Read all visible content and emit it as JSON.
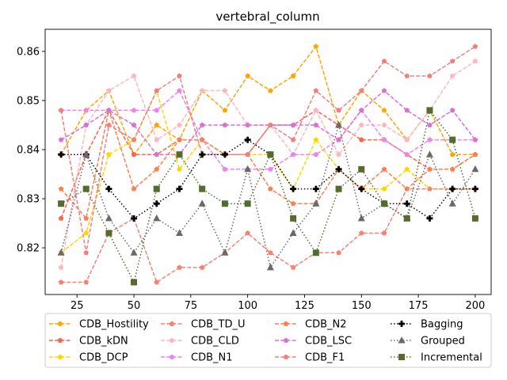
{
  "chart_data": {
    "type": "line",
    "title": "vertebral_column",
    "xlabel": "",
    "ylabel": "",
    "xlim": [
      11,
      207
    ],
    "ylim": [
      0.8105,
      0.8645
    ],
    "xticks": [
      25,
      50,
      75,
      100,
      125,
      150,
      175,
      200
    ],
    "yticks": [
      0.82,
      0.83,
      0.84,
      0.85,
      0.86
    ],
    "grid": false,
    "legend_position": "bottom",
    "x": [
      18,
      29,
      39,
      50,
      60,
      70,
      80,
      90,
      100,
      110,
      120,
      130,
      140,
      150,
      160,
      170,
      180,
      190,
      200
    ],
    "series": [
      {
        "name": "CDB_Hostility",
        "color": "#ffa500",
        "linestyle": "dashed",
        "marker": "pentagon",
        "values": [
          0.839,
          0.848,
          0.852,
          0.839,
          0.845,
          0.842,
          0.852,
          0.848,
          0.855,
          0.852,
          0.855,
          0.861,
          0.845,
          0.852,
          0.848,
          0.842,
          0.848,
          0.839,
          0.839
        ]
      },
      {
        "name": "CDB_kDN",
        "color": "#ff6347",
        "linestyle": "dashed",
        "marker": "pentagon",
        "values": [
          0.826,
          0.839,
          0.848,
          0.839,
          0.839,
          0.842,
          0.842,
          0.839,
          0.839,
          0.845,
          0.845,
          0.848,
          0.845,
          0.842,
          0.842,
          0.839,
          0.836,
          0.836,
          0.839
        ]
      },
      {
        "name": "CDB_DCP",
        "color": "#ffd700",
        "linestyle": "dashed",
        "marker": "pentagon",
        "values": [
          0.819,
          0.823,
          0.839,
          0.842,
          0.852,
          0.836,
          0.842,
          0.839,
          0.839,
          0.839,
          0.832,
          0.842,
          0.836,
          0.832,
          0.832,
          0.836,
          0.832,
          0.832,
          0.832
        ]
      },
      {
        "name": "CDB_TD_U",
        "color": "#fa8072",
        "linestyle": "dashed",
        "marker": "pentagon",
        "values": [
          0.813,
          0.813,
          0.823,
          0.826,
          0.813,
          0.816,
          0.816,
          0.819,
          0.823,
          0.819,
          0.816,
          0.819,
          0.819,
          0.823,
          0.823,
          0.832,
          0.832,
          0.832,
          0.832
        ]
      },
      {
        "name": "CDB_CLD",
        "color": "#ffb6c1",
        "linestyle": "dashed",
        "marker": "pentagon",
        "values": [
          0.816,
          0.845,
          0.852,
          0.855,
          0.842,
          0.845,
          0.852,
          0.852,
          0.845,
          0.845,
          0.839,
          0.848,
          0.839,
          0.845,
          0.845,
          0.842,
          0.848,
          0.855,
          0.858
        ]
      },
      {
        "name": "CDB_N1",
        "color": "#ee82ee",
        "linestyle": "dashed",
        "marker": "pentagon",
        "values": [
          0.848,
          0.848,
          0.848,
          0.848,
          0.848,
          0.852,
          0.842,
          0.836,
          0.836,
          0.836,
          0.839,
          0.839,
          0.842,
          0.848,
          0.842,
          0.839,
          0.842,
          0.842,
          0.842
        ]
      },
      {
        "name": "CDB_N2",
        "color": "#ff7f50",
        "linestyle": "dashed",
        "marker": "pentagon",
        "values": [
          0.832,
          0.826,
          0.848,
          0.832,
          0.836,
          0.842,
          0.842,
          0.839,
          0.839,
          0.832,
          0.829,
          0.829,
          0.836,
          0.832,
          0.836,
          0.832,
          0.836,
          0.836,
          0.839
        ]
      },
      {
        "name": "CDB_LSC",
        "color": "#da70d6",
        "linestyle": "dashed",
        "marker": "pentagon",
        "values": [
          0.842,
          0.845,
          0.848,
          0.845,
          0.839,
          0.839,
          0.845,
          0.845,
          0.845,
          0.845,
          0.845,
          0.845,
          0.842,
          0.848,
          0.852,
          0.848,
          0.845,
          0.848,
          0.842
        ]
      },
      {
        "name": "CDB_F1",
        "color": "#f08080",
        "linestyle": "dashed",
        "marker": "pentagon",
        "values": [
          0.848,
          0.819,
          0.845,
          0.842,
          0.852,
          0.855,
          0.839,
          0.839,
          0.839,
          0.845,
          0.842,
          0.852,
          0.848,
          0.852,
          0.858,
          0.855,
          0.855,
          0.858,
          0.861
        ]
      },
      {
        "name": "Bagging",
        "color": "#000000",
        "linestyle": "dotted",
        "marker": "plus",
        "values": [
          0.839,
          0.839,
          0.832,
          0.826,
          0.829,
          0.832,
          0.839,
          0.839,
          0.842,
          0.839,
          0.832,
          0.832,
          0.836,
          0.832,
          0.829,
          0.829,
          0.826,
          0.832,
          0.832
        ]
      },
      {
        "name": "Grouped",
        "color": "#696969",
        "linestyle": "dotted",
        "marker": "triangle",
        "values": [
          0.819,
          0.839,
          0.826,
          0.819,
          0.826,
          0.823,
          0.829,
          0.819,
          0.836,
          0.816,
          0.823,
          0.829,
          0.845,
          0.826,
          0.829,
          0.826,
          0.839,
          0.829,
          0.836
        ]
      },
      {
        "name": "Incremental",
        "color": "#556b2f",
        "linestyle": "dotted",
        "marker": "square",
        "values": [
          0.829,
          0.832,
          0.823,
          0.813,
          0.832,
          0.839,
          0.832,
          0.829,
          0.829,
          0.839,
          0.826,
          0.819,
          0.832,
          0.836,
          0.829,
          0.826,
          0.848,
          0.842,
          0.826
        ]
      }
    ]
  }
}
